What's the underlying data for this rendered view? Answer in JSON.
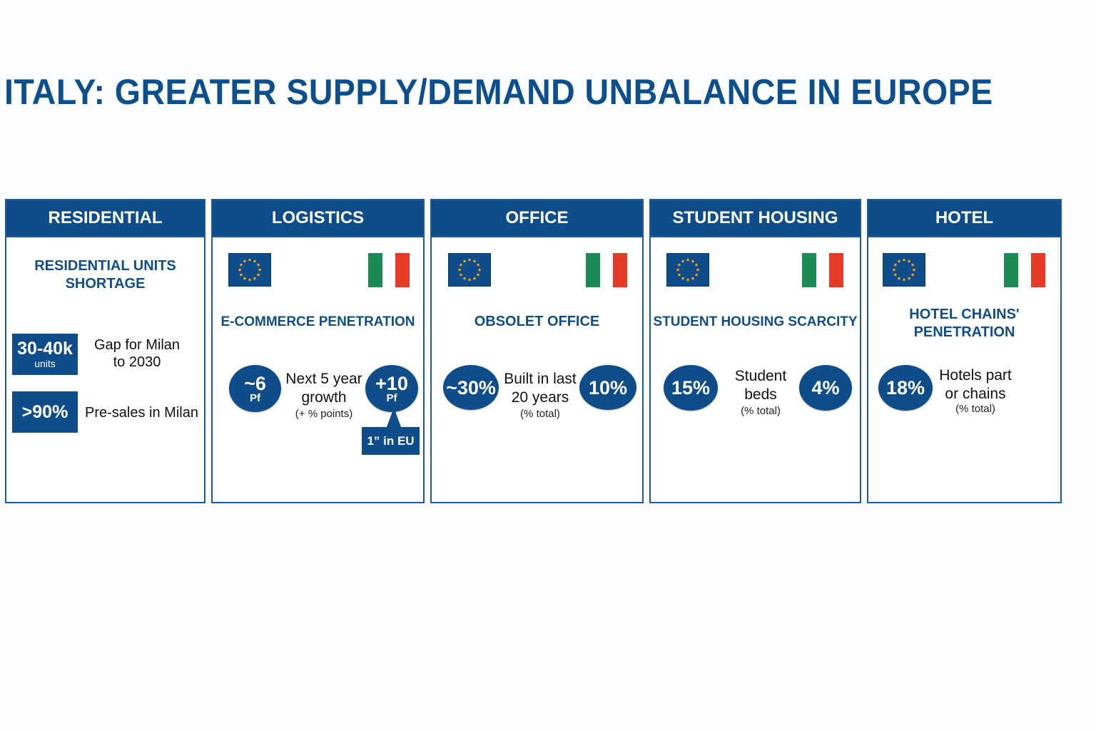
{
  "title": "ITALY: GREATER SUPPLY/DEMAND UNBALANCE IN EUROPE",
  "colors": {
    "brand": "#0f4d8a",
    "italy_green": "#1b8a55",
    "italy_red": "#e53a27",
    "eu_star": "#f39c12"
  },
  "icons": {
    "eu": "eu-flag-icon",
    "italy": "italy-flag-icon"
  },
  "residential": {
    "header": "RESIDENTIAL",
    "subtitle_line1": "RESIDENTIAL UNITS",
    "subtitle_line2": "SHORTAGE",
    "stat1_value": "30-40k",
    "stat1_unit": "units",
    "stat1_label_line1": "Gap for Milan",
    "stat1_label_line2": "to 2030",
    "stat2_value": ">90%",
    "stat2_label": "Pre-sales in Milan"
  },
  "logistics": {
    "header": "LOGISTICS",
    "subtitle": "E-COMMERCE PENETRATION",
    "eu_value": "~6",
    "eu_unit": "Pf",
    "it_value": "+10",
    "it_unit": "Pf",
    "label_line1": "Next 5 year",
    "label_line2": "growth",
    "note": "(+ % points)",
    "callout": "1” in EU"
  },
  "office": {
    "header": "OFFICE",
    "subtitle": "OBSOLET OFFICE",
    "eu_value": "~30%",
    "it_value": "10%",
    "label_line1": "Built in last",
    "label_line2": "20 years",
    "note": "(% total)"
  },
  "student": {
    "header": "STUDENT HOUSING",
    "subtitle": "STUDENT HOUSING SCARCITY",
    "eu_value": "15%",
    "it_value": "4%",
    "label_line1": "Student",
    "label_line2": "beds",
    "note": "(% total)"
  },
  "hotel": {
    "header": "HOTEL",
    "subtitle_line1": "HOTEL CHAINS'",
    "subtitle_line2": "PENETRATION",
    "value": "18%",
    "label_line1": "Hotels part",
    "label_line2": "or chains",
    "note": "(% total)"
  }
}
